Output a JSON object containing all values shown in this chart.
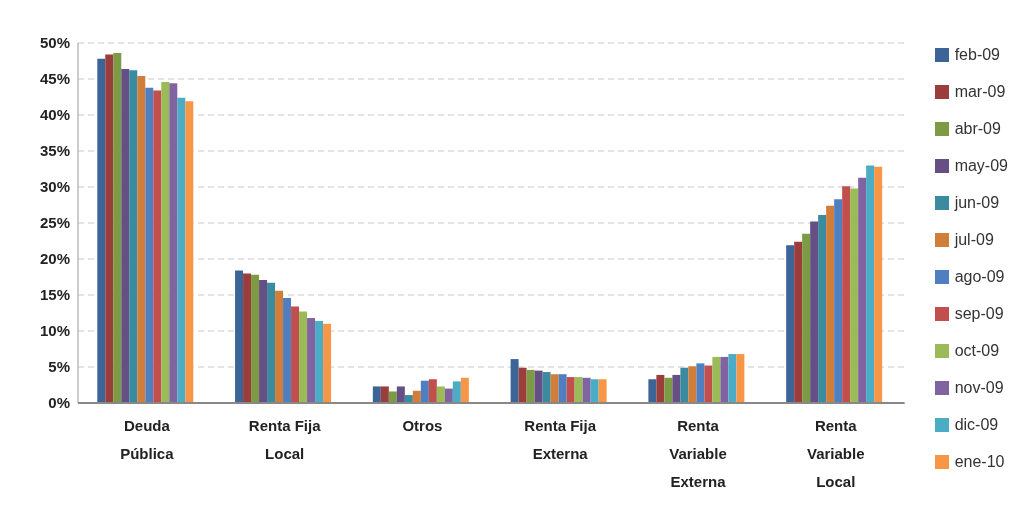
{
  "chart_data": {
    "type": "bar",
    "categories": [
      "Deuda Pública",
      "Renta Fija Local",
      "Otros",
      "Renta Fija Externa",
      "Renta Variable Externa",
      "Renta Variable Local"
    ],
    "series": [
      {
        "name": "feb-09",
        "color": "#3d6496",
        "values": [
          47.8,
          18.4,
          2.3,
          6.1,
          3.3,
          21.9
        ]
      },
      {
        "name": "mar-09",
        "color": "#9b3d3b",
        "values": [
          48.4,
          18.0,
          2.3,
          4.9,
          3.9,
          22.4
        ]
      },
      {
        "name": "abr-09",
        "color": "#7d9a45",
        "values": [
          48.6,
          17.8,
          1.6,
          4.6,
          3.5,
          23.5
        ]
      },
      {
        "name": "may-09",
        "color": "#654f84",
        "values": [
          46.4,
          17.1,
          2.3,
          4.5,
          3.9,
          25.2
        ]
      },
      {
        "name": "jun-09",
        "color": "#3a8aa0",
        "values": [
          46.2,
          16.7,
          1.1,
          4.3,
          4.9,
          26.1
        ]
      },
      {
        "name": "jul-09",
        "color": "#d07e3a",
        "values": [
          45.4,
          15.6,
          1.7,
          4.0,
          5.1,
          27.4
        ]
      },
      {
        "name": "ago-09",
        "color": "#4f7fc0",
        "values": [
          43.8,
          14.6,
          3.1,
          4.0,
          5.5,
          28.3
        ]
      },
      {
        "name": "sep-09",
        "color": "#c04f4d",
        "values": [
          43.4,
          13.4,
          3.3,
          3.6,
          5.2,
          30.1
        ]
      },
      {
        "name": "oct-09",
        "color": "#9bbb59",
        "values": [
          44.6,
          12.7,
          2.3,
          3.6,
          6.4,
          29.8
        ]
      },
      {
        "name": "nov-09",
        "color": "#8064a2",
        "values": [
          44.4,
          11.8,
          2.0,
          3.5,
          6.4,
          31.3
        ]
      },
      {
        "name": "dic-09",
        "color": "#4bacc6",
        "values": [
          42.4,
          11.4,
          3.0,
          3.3,
          6.8,
          33.0
        ]
      },
      {
        "name": "ene-10",
        "color": "#f79646",
        "values": [
          41.9,
          11.0,
          3.5,
          3.3,
          6.8,
          32.8
        ]
      }
    ],
    "ylim": [
      0,
      50
    ],
    "yticks": [
      {
        "value": 0,
        "label": "0%"
      },
      {
        "value": 5,
        "label": "5%"
      },
      {
        "value": 10,
        "label": "10%"
      },
      {
        "value": 15,
        "label": "15%"
      },
      {
        "value": 20,
        "label": "20%"
      },
      {
        "value": 25,
        "label": "25%"
      },
      {
        "value": 30,
        "label": "30%"
      },
      {
        "value": 35,
        "label": "35%"
      },
      {
        "value": 40,
        "label": "40%"
      },
      {
        "value": 45,
        "label": "45%"
      },
      {
        "value": 50,
        "label": "50%"
      }
    ],
    "grid": "y",
    "legend": "right"
  }
}
